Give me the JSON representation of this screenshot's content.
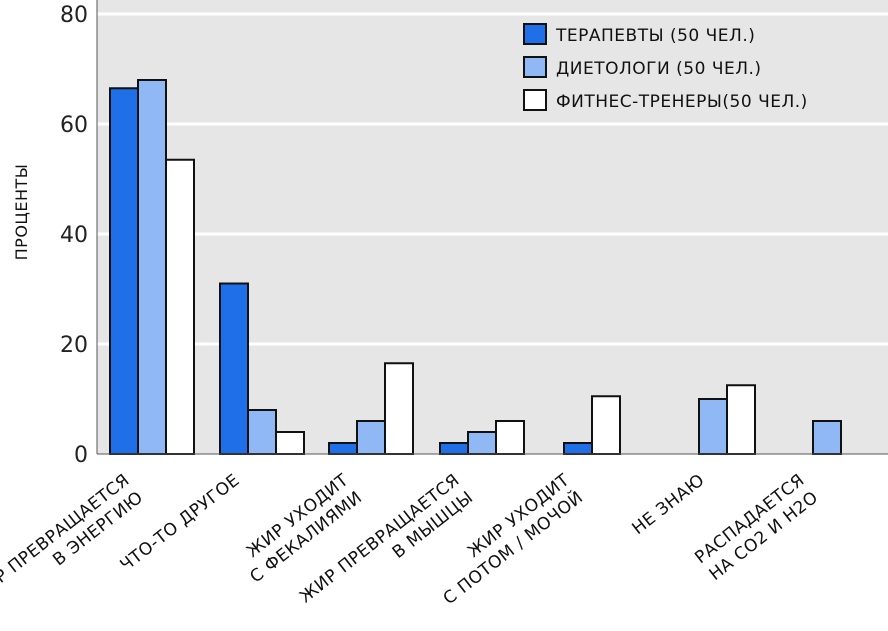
{
  "chart_data": {
    "type": "bar",
    "ylabel": "ПРОЦЕНТЫ",
    "ylim": [
      0,
      80
    ],
    "yticks": [
      0,
      20,
      40,
      60,
      80
    ],
    "grid": true,
    "legend_position": "top-right",
    "categories": [
      [
        "ЖИР ПРЕВРАЩАЕТСЯ",
        "В ЭНЕРГИЮ"
      ],
      [
        "ЧТО-ТО ДРУГОЕ"
      ],
      [
        "ЖИР УХОДИТ",
        "С ФЕКАЛИЯМИ"
      ],
      [
        "ЖИР ПРЕВРАЩАЕТСЯ",
        "В МЫШЦЫ"
      ],
      [
        "ЖИР УХОДИТ",
        "С ПОТОМ / МОЧОЙ"
      ],
      [
        "НЕ ЗНАЮ"
      ],
      [
        "РАСПАДАЕТСЯ",
        "НА CO2 И H2O"
      ]
    ],
    "series": [
      {
        "name": "ТЕРАПЕВТЫ (50 ЧЕЛ.)",
        "color": "#1f6fe8",
        "values": [
          66.5,
          31,
          2,
          2,
          2,
          0,
          0
        ]
      },
      {
        "name": "ДИЕТОЛОГИ (50 ЧЕЛ.)",
        "color": "#8fb8f5",
        "values": [
          68,
          8,
          6,
          4,
          0,
          10,
          6
        ]
      },
      {
        "name": "ФИТНЕС-ТРЕНЕРЫ(50 ЧЕЛ.)",
        "color": "#ffffff",
        "values": [
          53.5,
          4,
          16.5,
          6,
          10.5,
          12.5,
          0
        ]
      }
    ]
  }
}
